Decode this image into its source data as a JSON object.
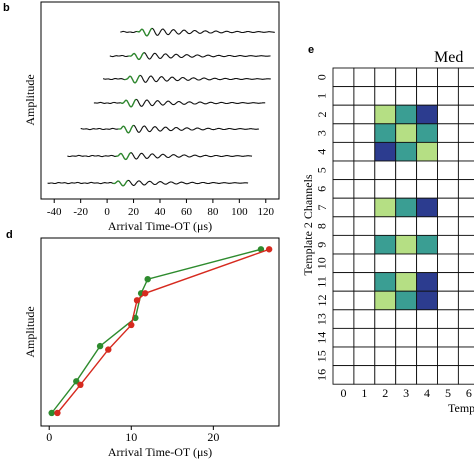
{
  "panels": {
    "b": {
      "letter": "b"
    },
    "d": {
      "letter": "d"
    },
    "e": {
      "letter": "e",
      "title_fragment": "Med",
      "xlabel_fragment": "Temp"
    }
  },
  "chart_data": [
    {
      "panel": "b",
      "type": "line",
      "title": "",
      "xlabel": "Arrival Time-OT (μs)",
      "ylabel": "Amplitude",
      "xticks": [
        -40,
        -20,
        0,
        20,
        40,
        60,
        80,
        100,
        120
      ],
      "xlim": [
        -50,
        130
      ],
      "traces": [
        {
          "start": 10,
          "end": 127,
          "onset": 24,
          "amp": 0.55
        },
        {
          "start": 2,
          "end": 124,
          "onset": 18,
          "amp": 0.5
        },
        {
          "start": -3,
          "end": 124,
          "onset": 15,
          "amp": 0.55
        },
        {
          "start": -10,
          "end": 120,
          "onset": 12,
          "amp": 0.55
        },
        {
          "start": -20,
          "end": 115,
          "onset": 10,
          "amp": 0.55
        },
        {
          "start": -30,
          "end": 110,
          "onset": 8,
          "amp": 0.5
        },
        {
          "start": -45,
          "end": 107,
          "onset": 6,
          "amp": 0.4
        }
      ],
      "highlight_color": "#2e8b2e",
      "trace_color": "#111111"
    },
    {
      "panel": "d",
      "type": "line",
      "title": "",
      "xlabel": "Arrival Time-OT (μs)",
      "ylabel": "Amplitude",
      "xticks": [
        0,
        10,
        20
      ],
      "xlim": [
        -1,
        28
      ],
      "ylim": [
        0,
        1
      ],
      "series": [
        {
          "color": "#2e8b2e",
          "x": [
            0.3,
            3.3,
            6.2,
            10.5,
            11.2,
            12.0,
            25.8
          ],
          "y": [
            0.04,
            0.22,
            0.42,
            0.58,
            0.72,
            0.8,
            0.97
          ]
        },
        {
          "color": "#d62a1f",
          "x": [
            1.0,
            3.8,
            7.2,
            10.0,
            10.7,
            11.7,
            26.8
          ],
          "y": [
            0.04,
            0.2,
            0.4,
            0.54,
            0.68,
            0.72,
            0.97
          ]
        }
      ]
    },
    {
      "panel": "e",
      "type": "heatmap",
      "title": "Med",
      "xlabel": "Temp",
      "ylabel": "Template 2 Channels",
      "row_labels": [
        "0",
        "1",
        "2",
        "3",
        "4",
        "5",
        "6",
        "7",
        "8",
        "9",
        "10",
        "11",
        "12",
        "13",
        "14",
        "15",
        "16"
      ],
      "col_labels": [
        "0",
        "1",
        "2",
        "3",
        "4",
        "5",
        "6"
      ],
      "cells": [
        {
          "r": 2,
          "c": 2,
          "v": 0.65
        },
        {
          "r": 2,
          "c": 3,
          "v": 0.45
        },
        {
          "r": 2,
          "c": 4,
          "v": 0.95
        },
        {
          "r": 3,
          "c": 2,
          "v": 0.45
        },
        {
          "r": 3,
          "c": 3,
          "v": 0.65
        },
        {
          "r": 3,
          "c": 4,
          "v": 0.45
        },
        {
          "r": 4,
          "c": 2,
          "v": 0.95
        },
        {
          "r": 4,
          "c": 3,
          "v": 0.45
        },
        {
          "r": 4,
          "c": 4,
          "v": 0.65
        },
        {
          "r": 7,
          "c": 2,
          "v": 0.65
        },
        {
          "r": 7,
          "c": 3,
          "v": 0.45
        },
        {
          "r": 7,
          "c": 4,
          "v": 0.95
        },
        {
          "r": 9,
          "c": 2,
          "v": 0.45
        },
        {
          "r": 9,
          "c": 3,
          "v": 0.65
        },
        {
          "r": 9,
          "c": 4,
          "v": 0.45
        },
        {
          "r": 11,
          "c": 2,
          "v": 0.45
        },
        {
          "r": 11,
          "c": 3,
          "v": 0.65
        },
        {
          "r": 11,
          "c": 4,
          "v": 0.95
        },
        {
          "r": 12,
          "c": 2,
          "v": 0.65
        },
        {
          "r": 12,
          "c": 3,
          "v": 0.45
        },
        {
          "r": 12,
          "c": 4,
          "v": 0.95
        }
      ],
      "colors": {
        "low": "#b5df84",
        "mid": "#3a9e93",
        "high": "#2c3c8f"
      }
    }
  ]
}
